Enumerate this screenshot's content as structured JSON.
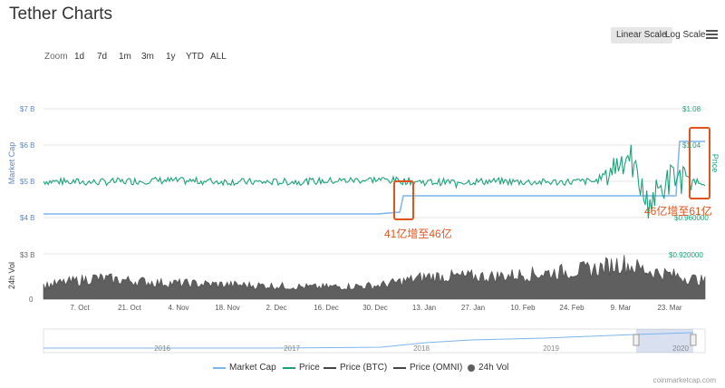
{
  "header": {
    "title": "Tether Charts",
    "linear_scale": "Linear Scale",
    "log_scale": "Log Scale",
    "zoom_label": "Zoom",
    "zoom_options": [
      "1d",
      "7d",
      "1m",
      "3m",
      "1y",
      "YTD",
      "ALL"
    ]
  },
  "annotations": {
    "left": "41亿增至46亿",
    "right": "46亿增至61亿",
    "color": "#e0541c"
  },
  "credit": "coinmarketcap.com",
  "chart_data": {
    "type": "line",
    "title": "Tether Charts",
    "x_tick_labels": [
      "7. Oct",
      "21. Oct",
      "4. Nov",
      "18. Nov",
      "2. Dec",
      "16. Dec",
      "30. Dec",
      "13. Jan",
      "27. Jan",
      "10. Feb",
      "24. Feb",
      "9. Mar",
      "23. Mar"
    ],
    "y_left_label": "Market Cap",
    "y_left_ticks": [
      "$7 B",
      "$6 B",
      "$5 B",
      "$4 B"
    ],
    "y_left_range": [
      4,
      7
    ],
    "y_right_label": "Price",
    "y_right_ticks": [
      "$1.08",
      "$1.04",
      "$0.960000",
      "$0.920000"
    ],
    "vol_label": "24h Vol",
    "vol_ticks": [
      "$3 B",
      "0"
    ],
    "navigator_labels": [
      "2016",
      "2017",
      "2018",
      "2019",
      "2020"
    ],
    "series": [
      {
        "name": "Market Cap",
        "color": "#7cb5ec",
        "x": [
          "2019-10-01",
          "2019-11-01",
          "2019-12-01",
          "2019-12-30",
          "2020-01-01",
          "2020-01-07",
          "2020-01-08",
          "2020-02-01",
          "2020-03-01",
          "2020-03-15",
          "2020-03-23",
          "2020-03-24",
          "2020-03-31"
        ],
        "values": [
          4.1,
          4.1,
          4.1,
          4.1,
          4.1,
          4.15,
          4.6,
          4.6,
          4.6,
          4.6,
          4.6,
          6.1,
          6.1
        ]
      },
      {
        "name": "Price",
        "color": "#1aa37a",
        "x": [
          "2019-10-01",
          "2019-10-15",
          "2019-11-01",
          "2019-11-15",
          "2019-12-01",
          "2019-12-15",
          "2020-01-01",
          "2020-01-15",
          "2020-02-01",
          "2020-02-15",
          "2020-03-01",
          "2020-03-10",
          "2020-03-15",
          "2020-03-22",
          "2020-03-31"
        ],
        "values": [
          1.0,
          0.999,
          1.001,
          1.0,
          0.999,
          1.0,
          1.002,
          0.999,
          1.0,
          0.999,
          1.0,
          1.03,
          0.975,
          1.005,
          0.999
        ]
      },
      {
        "name": "Price (BTC)",
        "color": "#434348"
      },
      {
        "name": "Price (OMNI)",
        "color": "#434348"
      },
      {
        "name": "24h Vol",
        "color": "#5f5f5f",
        "x": [
          "2019-10-01",
          "2019-10-15",
          "2019-11-01",
          "2019-11-15",
          "2019-12-01",
          "2019-12-15",
          "2020-01-01",
          "2020-01-15",
          "2020-02-01",
          "2020-02-15",
          "2020-03-01",
          "2020-03-08",
          "2020-03-15",
          "2020-03-22",
          "2020-03-31"
        ],
        "values": [
          0.9,
          1.4,
          1.1,
          1.0,
          0.9,
          0.8,
          0.9,
          1.5,
          1.5,
          1.7,
          2.0,
          2.4,
          1.9,
          1.6,
          1.2
        ]
      }
    ],
    "legend_position": "bottom"
  }
}
